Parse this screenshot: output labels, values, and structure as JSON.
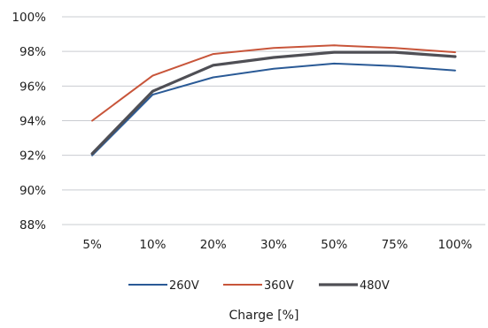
{
  "chart_data": {
    "type": "line",
    "title": "",
    "xlabel": "Charge [%]",
    "ylabel": "",
    "categories": [
      "5%",
      "10%",
      "20%",
      "30%",
      "50%",
      "75%",
      "100%"
    ],
    "ylim": [
      88,
      100
    ],
    "yticks": [
      88,
      90,
      92,
      94,
      96,
      98,
      100
    ],
    "ytick_labels": [
      "88%",
      "90%",
      "92%",
      "94%",
      "96%",
      "98%",
      "100%"
    ],
    "grid": true,
    "legend_position": "bottom",
    "series": [
      {
        "name": "260V",
        "color": "#2a5a96",
        "values": [
          92.0,
          95.5,
          96.5,
          97.0,
          97.3,
          97.15,
          96.9
        ]
      },
      {
        "name": "360V",
        "color": "#c8553a",
        "values": [
          94.0,
          96.6,
          97.85,
          98.2,
          98.35,
          98.2,
          97.95
        ]
      },
      {
        "name": "480V",
        "color": "#4f4f55",
        "values": [
          92.1,
          95.7,
          97.2,
          97.65,
          97.95,
          97.95,
          97.7
        ]
      }
    ]
  }
}
